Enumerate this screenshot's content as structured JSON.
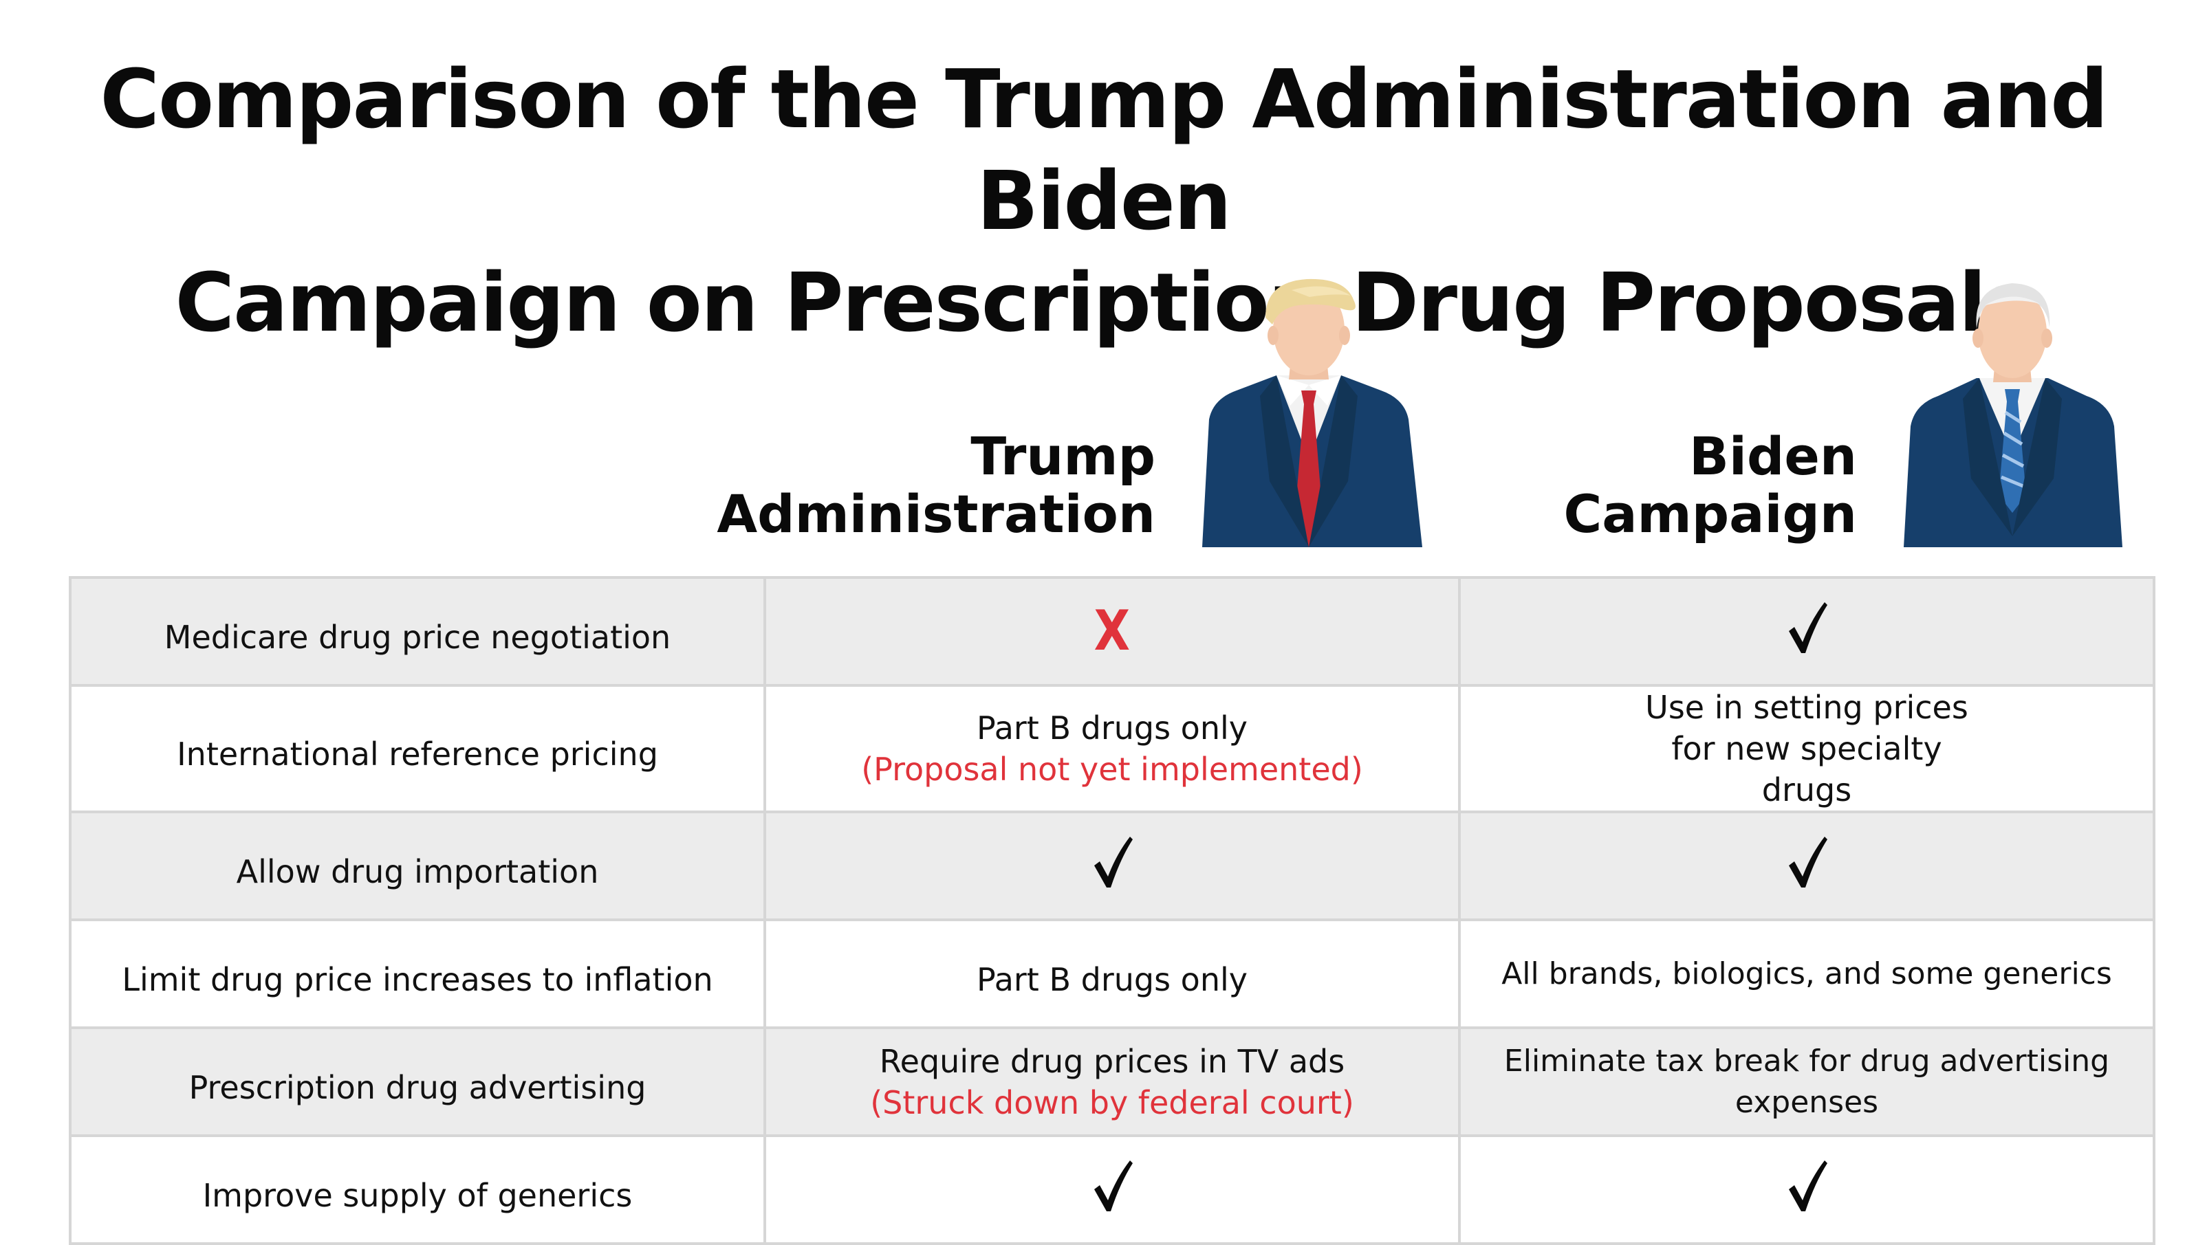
{
  "title": {
    "line1": "Comparison of the Trump Administration and Biden",
    "line2": "Campaign on Prescription Drug Proposals"
  },
  "columns": {
    "trump": {
      "line1": "Trump",
      "line2": "Administration"
    },
    "biden": {
      "line1": "Biden",
      "line2": "Campaign"
    }
  },
  "colors": {
    "negative_mark": "#e0333b",
    "note_text": "#e0333b",
    "shaded_row": "#ececec",
    "suit": "#163f6b",
    "trump_tie": "#c62833",
    "biden_tie": "#2f6fb3"
  },
  "rows": [
    {
      "label": "Medicare drug price negotiation",
      "trump": {
        "mark": "x",
        "mark_text": "X"
      },
      "biden": {
        "mark": "check"
      }
    },
    {
      "label": "International reference pricing",
      "trump": {
        "text": "Part B drugs only",
        "note": "(Proposal not yet implemented)"
      },
      "biden": {
        "text": "Use in setting prices for new specialty drugs"
      }
    },
    {
      "label": "Allow drug importation",
      "trump": {
        "mark": "check"
      },
      "biden": {
        "mark": "check"
      }
    },
    {
      "label": "Limit drug price increases to inflation",
      "trump": {
        "text": "Part B drugs only"
      },
      "biden": {
        "text": "All brands, biologics, and some generics"
      }
    },
    {
      "label": "Prescription drug advertising",
      "trump": {
        "text": "Require drug prices in TV ads",
        "note": "(Struck down by federal court)"
      },
      "biden": {
        "text": "Eliminate tax break for drug advertising expenses"
      }
    },
    {
      "label": "Improve supply of generics",
      "trump": {
        "mark": "check"
      },
      "biden": {
        "mark": "check"
      }
    }
  ],
  "icons": {
    "check": "checkmark-icon",
    "x": "x-mark-icon",
    "trump_portrait": "trump-portrait-illustration",
    "biden_portrait": "biden-portrait-illustration"
  }
}
